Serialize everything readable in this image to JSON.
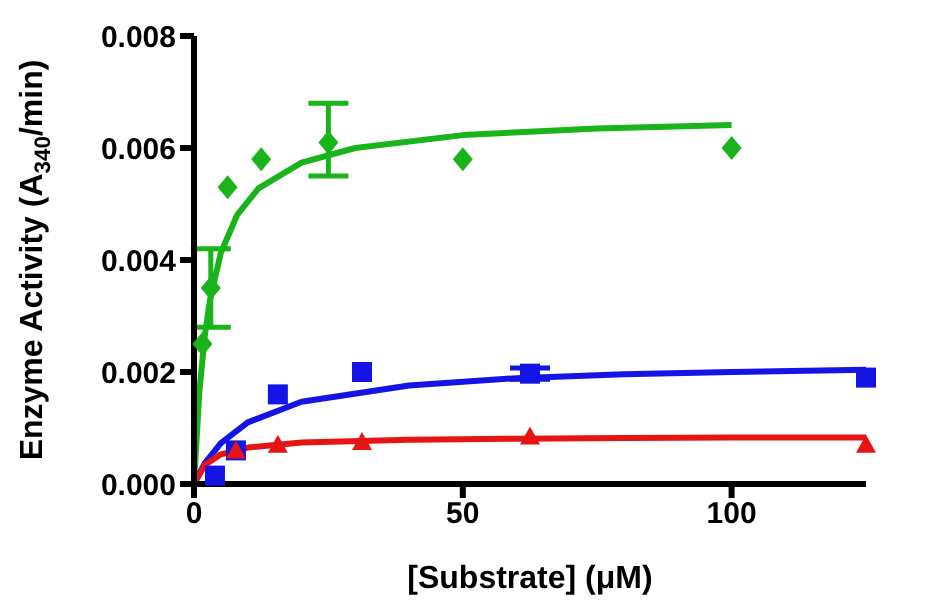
{
  "chart_data": {
    "type": "scatter",
    "xlabel": "[Substrate] (μM)",
    "ylabel": "Enzyme Activity (A$_{340}$/min)",
    "xlim": [
      0,
      125
    ],
    "xticks": [
      0,
      50,
      100
    ],
    "ylim": [
      0,
      0.008
    ],
    "yticks": [
      {
        "value": 0,
        "label": "0.000"
      },
      {
        "value": 0.002,
        "label": "0.002"
      },
      {
        "value": 0.004,
        "label": "0.004"
      },
      {
        "value": 0.006,
        "label": "0.006"
      },
      {
        "value": 0.008,
        "label": "0.008"
      }
    ],
    "series": [
      {
        "type": "line",
        "color": "#19b419",
        "marker": "none",
        "x": [
          0,
          1,
          2,
          3,
          5,
          8,
          12,
          20,
          30,
          50,
          75,
          100
        ],
        "values": [
          0,
          0.00165,
          0.00264,
          0.0033,
          0.00413,
          0.0048,
          0.00528,
          0.00574,
          0.006,
          0.00623,
          0.00635,
          0.00641
        ]
      },
      {
        "type": "line",
        "color": "#1414e6",
        "marker": "none",
        "x": [
          0,
          2,
          5,
          10,
          20,
          40,
          60,
          80,
          100,
          125
        ],
        "values": [
          0,
          0.00037,
          0.00073,
          0.0011,
          0.00147,
          0.00176,
          0.00189,
          0.00196,
          0.002,
          0.00204
        ]
      },
      {
        "type": "line",
        "color": "#e61414",
        "marker": "none",
        "x": [
          0,
          2,
          5,
          10,
          20,
          40,
          60,
          80,
          100,
          125
        ],
        "values": [
          0,
          0.00034,
          0.00053,
          0.00065,
          0.00074,
          0.00079,
          0.00081,
          0.00082,
          0.00083,
          0.00083
        ]
      },
      {
        "color": "#19b419",
        "marker": "diamond",
        "x": [
          1.5625,
          3.125,
          6.25,
          12.5,
          25,
          50,
          100
        ],
        "values": [
          0.0025,
          0.0035,
          0.0053,
          0.0058,
          0.0061,
          0.0058,
          0.006
        ],
        "errors": [
          null,
          0.0007,
          null,
          null,
          [
            0.0055,
            0.0068
          ],
          null,
          null
        ]
      },
      {
        "color": "#1414e6",
        "marker": "square",
        "x": [
          3.9,
          7.8,
          15.6,
          31.25,
          62.5,
          125
        ],
        "values": [
          0.00015,
          0.0006,
          0.0016,
          0.002,
          0.00197,
          0.0019
        ],
        "errors": [
          null,
          null,
          null,
          null,
          0.0001,
          null
        ]
      },
      {
        "color": "#e61414",
        "marker": "triangle",
        "x": [
          7.8,
          15.6,
          31.25,
          62.5,
          125
        ],
        "values": [
          0.0006,
          0.0007,
          0.00075,
          0.00085,
          0.0007
        ]
      }
    ]
  }
}
